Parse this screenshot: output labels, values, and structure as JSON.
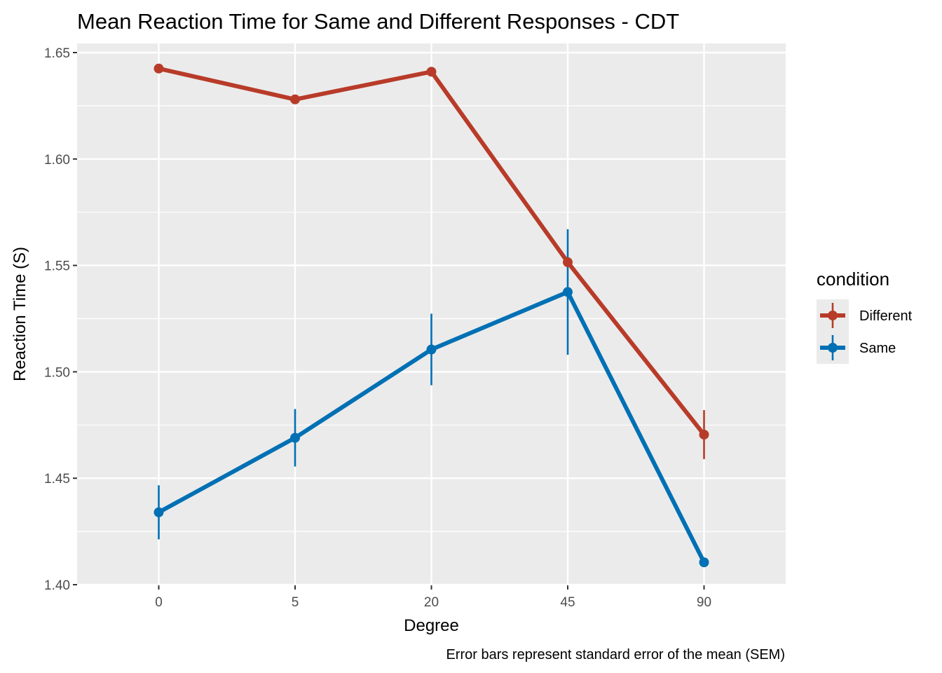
{
  "chart_data": {
    "type": "line",
    "title": "Mean Reaction Time for Same and Different Responses - CDT",
    "xlabel": "Degree",
    "ylabel": "Reaction Time (S)",
    "caption": "Error bars represent standard error of the mean (SEM)",
    "categories": [
      "0",
      "5",
      "20",
      "45",
      "90"
    ],
    "ylim": [
      1.4,
      1.65
    ],
    "yticks": [
      "1.40",
      "1.45",
      "1.50",
      "1.55",
      "1.60",
      "1.65"
    ],
    "grid": true,
    "legend": {
      "title": "condition",
      "placement": "right"
    },
    "series": [
      {
        "name": "Different",
        "color": "#b83b29",
        "values": [
          1.6425,
          1.628,
          1.641,
          1.5515,
          1.4705
        ],
        "sem": [
          0.0,
          0.0,
          0.0,
          0.0,
          0.0115
        ]
      },
      {
        "name": "Same",
        "color": "#0070b4",
        "values": [
          1.434,
          1.469,
          1.5105,
          1.5375,
          1.4105
        ],
        "sem": [
          0.0127,
          0.0135,
          0.0168,
          0.0295,
          0.0
        ]
      }
    ]
  }
}
